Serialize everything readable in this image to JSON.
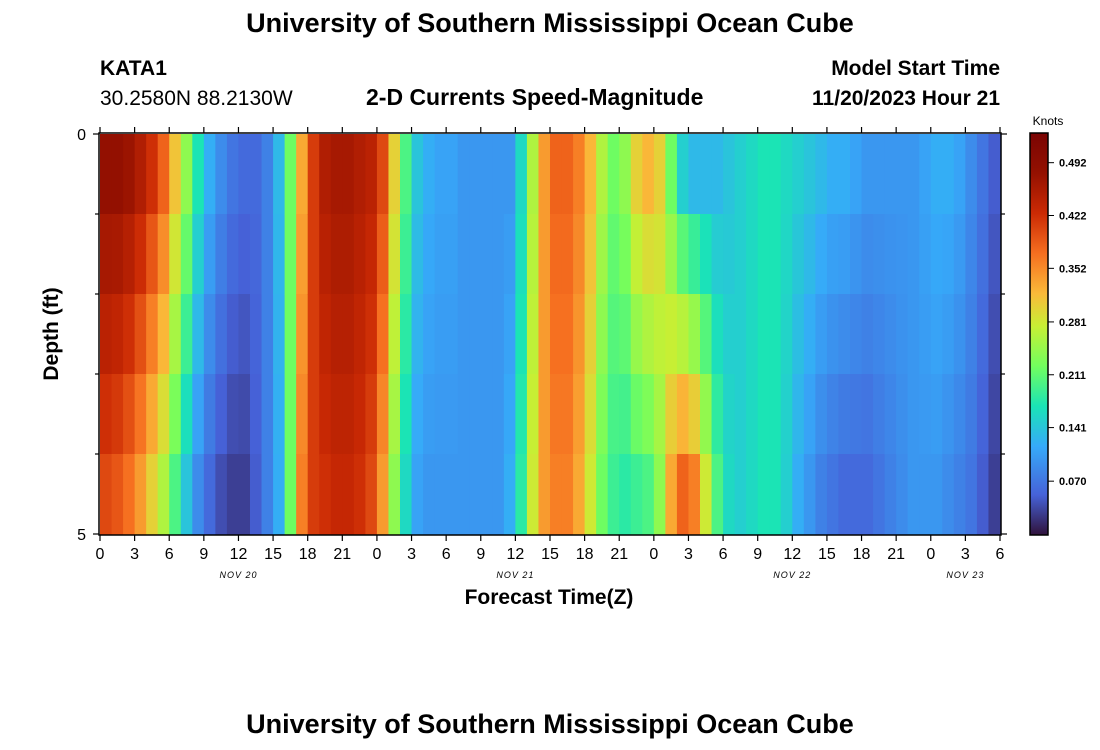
{
  "header": {
    "title": "University of Southern Mississippi Ocean Cube",
    "station": "KATA1",
    "coordinates": "30.2580N  88.2130W",
    "plot_title": "2-D Currents Speed-Magnitude",
    "model_start_label": "Model Start Time",
    "model_start_value": "11/20/2023 Hour 21"
  },
  "footer": {
    "title": "University of Southern Mississippi Ocean Cube"
  },
  "chart_data": {
    "type": "heatmap",
    "title": "2-D Currents Speed-Magnitude",
    "xlabel": "Forecast Time(Z)",
    "ylabel": "Depth (ft)",
    "x_tick_labels": [
      "0",
      "3",
      "6",
      "9",
      "12",
      "15",
      "18",
      "21",
      "0",
      "3",
      "6",
      "9",
      "12",
      "15",
      "18",
      "21",
      "0",
      "3",
      "6",
      "9",
      "12",
      "15",
      "18",
      "21",
      "0",
      "3",
      "6"
    ],
    "y_tick_labels": [
      "0",
      "5"
    ],
    "ylim": [
      0,
      5
    ],
    "date_labels": [
      {
        "label": "NOV 20",
        "hour": 12
      },
      {
        "label": "NOV 21",
        "hour": 36
      },
      {
        "label": "NOV 22",
        "hour": 60
      },
      {
        "label": "NOV 23",
        "hour": 75
      }
    ],
    "colorbar": {
      "units": "Knots",
      "min": 0.0,
      "max": 0.53,
      "tick_labels": [
        "0.492",
        "0.422",
        "0.352",
        "0.281",
        "0.211",
        "0.141",
        "0.070"
      ],
      "tick_values": [
        0.492,
        0.422,
        0.352,
        0.281,
        0.211,
        0.141,
        0.07
      ]
    },
    "time_step_hours": 1,
    "depth_layers": 5,
    "speed_profile_surface": [
      0.48,
      0.48,
      0.47,
      0.45,
      0.42,
      0.38,
      0.31,
      0.24,
      0.17,
      0.12,
      0.09,
      0.07,
      0.06,
      0.06,
      0.08,
      0.13,
      0.22,
      0.33,
      0.41,
      0.45,
      0.46,
      0.46,
      0.45,
      0.44,
      0.4,
      0.3,
      0.2,
      0.14,
      0.12,
      0.11,
      0.11,
      0.1,
      0.1,
      0.1,
      0.1,
      0.1,
      0.16,
      0.26,
      0.34,
      0.38,
      0.38,
      0.36,
      0.32,
      0.26,
      0.22,
      0.24,
      0.3,
      0.32,
      0.3,
      0.22,
      0.15,
      0.13,
      0.13,
      0.13,
      0.14,
      0.15,
      0.16,
      0.17,
      0.17,
      0.16,
      0.15,
      0.14,
      0.13,
      0.12,
      0.12,
      0.11,
      0.1,
      0.1,
      0.1,
      0.1,
      0.1,
      0.11,
      0.12,
      0.12,
      0.11,
      0.09,
      0.07,
      0.05,
      0.04
    ],
    "speed_profile_bottom": [
      0.4,
      0.39,
      0.37,
      0.34,
      0.3,
      0.26,
      0.2,
      0.14,
      0.09,
      0.06,
      0.04,
      0.03,
      0.03,
      0.05,
      0.08,
      0.12,
      0.22,
      0.36,
      0.41,
      0.42,
      0.43,
      0.43,
      0.42,
      0.4,
      0.34,
      0.24,
      0.16,
      0.11,
      0.1,
      0.1,
      0.1,
      0.1,
      0.1,
      0.1,
      0.1,
      0.12,
      0.18,
      0.28,
      0.34,
      0.36,
      0.36,
      0.33,
      0.28,
      0.22,
      0.19,
      0.18,
      0.19,
      0.2,
      0.24,
      0.33,
      0.38,
      0.36,
      0.28,
      0.2,
      0.16,
      0.15,
      0.16,
      0.17,
      0.17,
      0.15,
      0.12,
      0.1,
      0.08,
      0.07,
      0.06,
      0.06,
      0.06,
      0.07,
      0.08,
      0.09,
      0.1,
      0.1,
      0.1,
      0.09,
      0.08,
      0.07,
      0.05,
      0.03,
      0.01
    ]
  }
}
